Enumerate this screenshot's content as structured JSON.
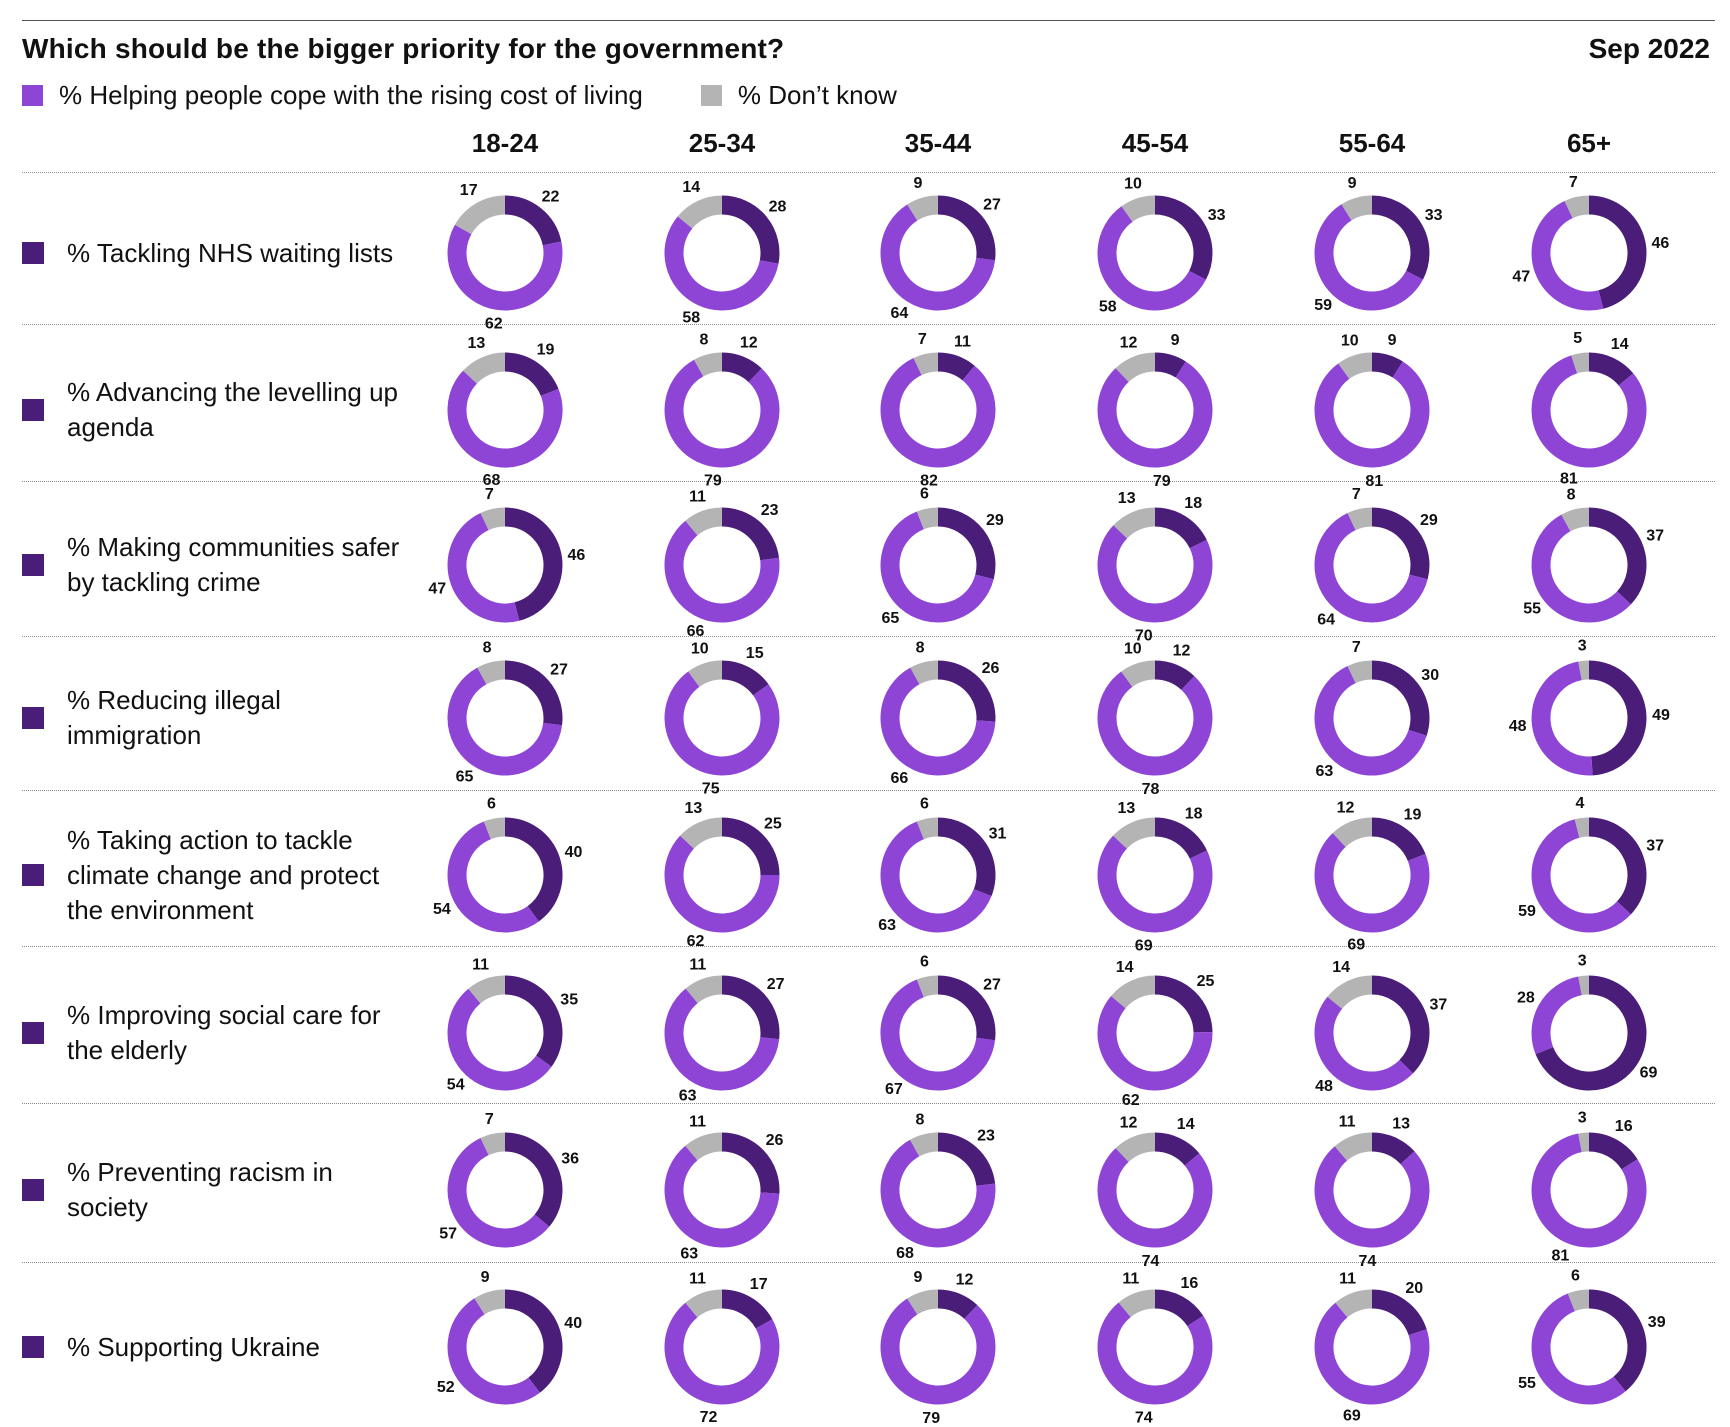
{
  "title": "Which should be the bigger priority for the government?",
  "date": "Sep 2022",
  "legend": [
    {
      "label": "% Helping people cope with the rising cost of living",
      "color": "#8e45d6"
    },
    {
      "label": "% Don’t know",
      "color": "#b4b4b4"
    }
  ],
  "colors": {
    "alternative": "#4a1e78",
    "cost_of_living": "#8e45d6",
    "dont_know": "#b4b4b4",
    "row_marker": "#4a1e78"
  },
  "chart_data": {
    "type": "donut-grid",
    "columns": [
      "18-24",
      "25-34",
      "35-44",
      "45-54",
      "55-64",
      "65+"
    ],
    "rows": [
      {
        "label": "% Tackling NHS waiting lists",
        "values": [
          {
            "alt": 22,
            "col": 62,
            "dk": 17
          },
          {
            "alt": 28,
            "col": 58,
            "dk": 14
          },
          {
            "alt": 27,
            "col": 64,
            "dk": 9
          },
          {
            "alt": 33,
            "col": 58,
            "dk": 10
          },
          {
            "alt": 33,
            "col": 59,
            "dk": 9
          },
          {
            "alt": 46,
            "col": 47,
            "dk": 7
          }
        ]
      },
      {
        "label": "% Advancing the levelling up agenda",
        "values": [
          {
            "alt": 19,
            "col": 68,
            "dk": 13
          },
          {
            "alt": 12,
            "col": 79,
            "dk": 8
          },
          {
            "alt": 11,
            "col": 82,
            "dk": 7
          },
          {
            "alt": 9,
            "col": 79,
            "dk": 12
          },
          {
            "alt": 9,
            "col": 81,
            "dk": 10
          },
          {
            "alt": 14,
            "col": 81,
            "dk": 5
          }
        ]
      },
      {
        "label": "% Making communities safer by tackling crime",
        "values": [
          {
            "alt": 46,
            "col": 47,
            "dk": 7
          },
          {
            "alt": 23,
            "col": 66,
            "dk": 11
          },
          {
            "alt": 29,
            "col": 65,
            "dk": 6
          },
          {
            "alt": 18,
            "col": 70,
            "dk": 13
          },
          {
            "alt": 29,
            "col": 64,
            "dk": 7
          },
          {
            "alt": 37,
            "col": 55,
            "dk": 8
          }
        ]
      },
      {
        "label": "% Reducing illegal immigration",
        "values": [
          {
            "alt": 27,
            "col": 65,
            "dk": 8
          },
          {
            "alt": 15,
            "col": 75,
            "dk": 10
          },
          {
            "alt": 26,
            "col": 66,
            "dk": 8
          },
          {
            "alt": 12,
            "col": 78,
            "dk": 10
          },
          {
            "alt": 30,
            "col": 63,
            "dk": 7
          },
          {
            "alt": 49,
            "col": 48,
            "dk": 3
          }
        ]
      },
      {
        "label": "% Taking action to tackle climate change and protect the environment",
        "values": [
          {
            "alt": 40,
            "col": 54,
            "dk": 6
          },
          {
            "alt": 25,
            "col": 62,
            "dk": 13
          },
          {
            "alt": 31,
            "col": 63,
            "dk": 6
          },
          {
            "alt": 18,
            "col": 69,
            "dk": 13
          },
          {
            "alt": 19,
            "col": 69,
            "dk": 12
          },
          {
            "alt": 37,
            "col": 59,
            "dk": 4
          }
        ]
      },
      {
        "label": "% Improving social care for the elderly",
        "values": [
          {
            "alt": 35,
            "col": 54,
            "dk": 11
          },
          {
            "alt": 27,
            "col": 63,
            "dk": 11
          },
          {
            "alt": 27,
            "col": 67,
            "dk": 6
          },
          {
            "alt": 25,
            "col": 62,
            "dk": 14
          },
          {
            "alt": 37,
            "col": 48,
            "dk": 14
          },
          {
            "alt": 69,
            "col": 28,
            "dk": 3
          }
        ]
      },
      {
        "label": "% Preventing racism in society",
        "values": [
          {
            "alt": 36,
            "col": 57,
            "dk": 7
          },
          {
            "alt": 26,
            "col": 63,
            "dk": 11
          },
          {
            "alt": 23,
            "col": 68,
            "dk": 8
          },
          {
            "alt": 14,
            "col": 74,
            "dk": 12
          },
          {
            "alt": 13,
            "col": 74,
            "dk": 11
          },
          {
            "alt": 16,
            "col": 81,
            "dk": 3
          }
        ]
      },
      {
        "label": "% Supporting Ukraine",
        "values": [
          {
            "alt": 40,
            "col": 52,
            "dk": 9
          },
          {
            "alt": 17,
            "col": 72,
            "dk": 11
          },
          {
            "alt": 12,
            "col": 79,
            "dk": 9
          },
          {
            "alt": 16,
            "col": 74,
            "dk": 11
          },
          {
            "alt": 20,
            "col": 69,
            "dk": 11
          },
          {
            "alt": 39,
            "col": 55,
            "dk": 6
          }
        ]
      }
    ]
  }
}
